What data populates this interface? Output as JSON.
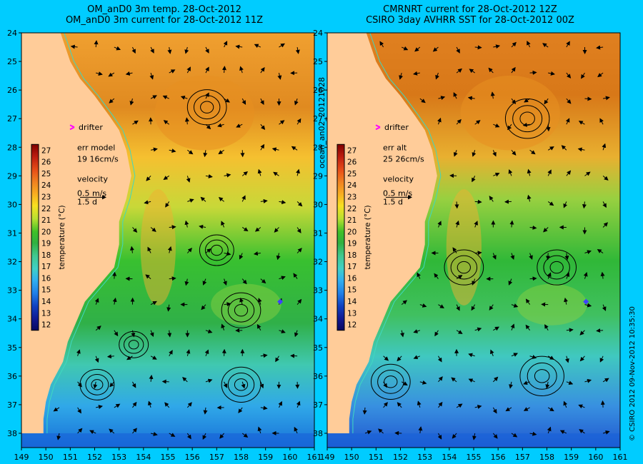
{
  "panels": [
    {
      "id": "left",
      "title_line1": "OM_anD0 3m temp. 28-Oct-2012",
      "title_line2": "OM_anD0 3m current for 28-Oct-2012 11Z",
      "legend": {
        "drifter_label": "drifter",
        "err_label": "err model",
        "err_value": "19 16cm/s",
        "velocity_label": "velocity",
        "velocity_scale": "0.5 m/s",
        "velocity_time": "1.5 d",
        "colorbar_title": "temperature (°C)"
      }
    },
    {
      "id": "right",
      "title_line1": "CMRNRT current for 28-Oct-2012 12Z",
      "title_line2": "CSIRO 3day AVHRR SST for 28-Oct-2012 00Z",
      "legend": {
        "drifter_label": "drifter",
        "err_label": "err alt",
        "err_value": "25 26cm/s",
        "velocity_label": "velocity",
        "velocity_scale": "0.5 m/s",
        "velocity_time": "1.5 d",
        "colorbar_title": "temperature (°C)"
      }
    }
  ],
  "map_data": {
    "type": "heatmap",
    "lon_ticks": [
      149,
      150,
      151,
      152,
      153,
      154,
      155,
      156,
      157,
      158,
      159,
      160,
      161
    ],
    "lat_ticks": [
      24,
      25,
      26,
      27,
      28,
      29,
      30,
      31,
      32,
      33,
      34,
      35,
      36,
      37,
      38
    ],
    "lon_range": [
      149,
      161
    ],
    "lat_range": [
      24,
      38.5
    ],
    "colorbar_ticks": [
      27,
      26,
      25,
      24,
      23,
      22,
      21,
      20,
      19,
      18,
      17,
      16,
      15,
      14,
      13,
      12
    ],
    "colorbar_range": [
      12,
      27
    ]
  },
  "side_label": "ocean_an02_20121028",
  "credit": "© CSIRO 2012   09-Nov-2012 10:35:30",
  "colors": {
    "background": "#00ccff",
    "land": "#ffcc99",
    "drifter": "#ff00ff"
  }
}
